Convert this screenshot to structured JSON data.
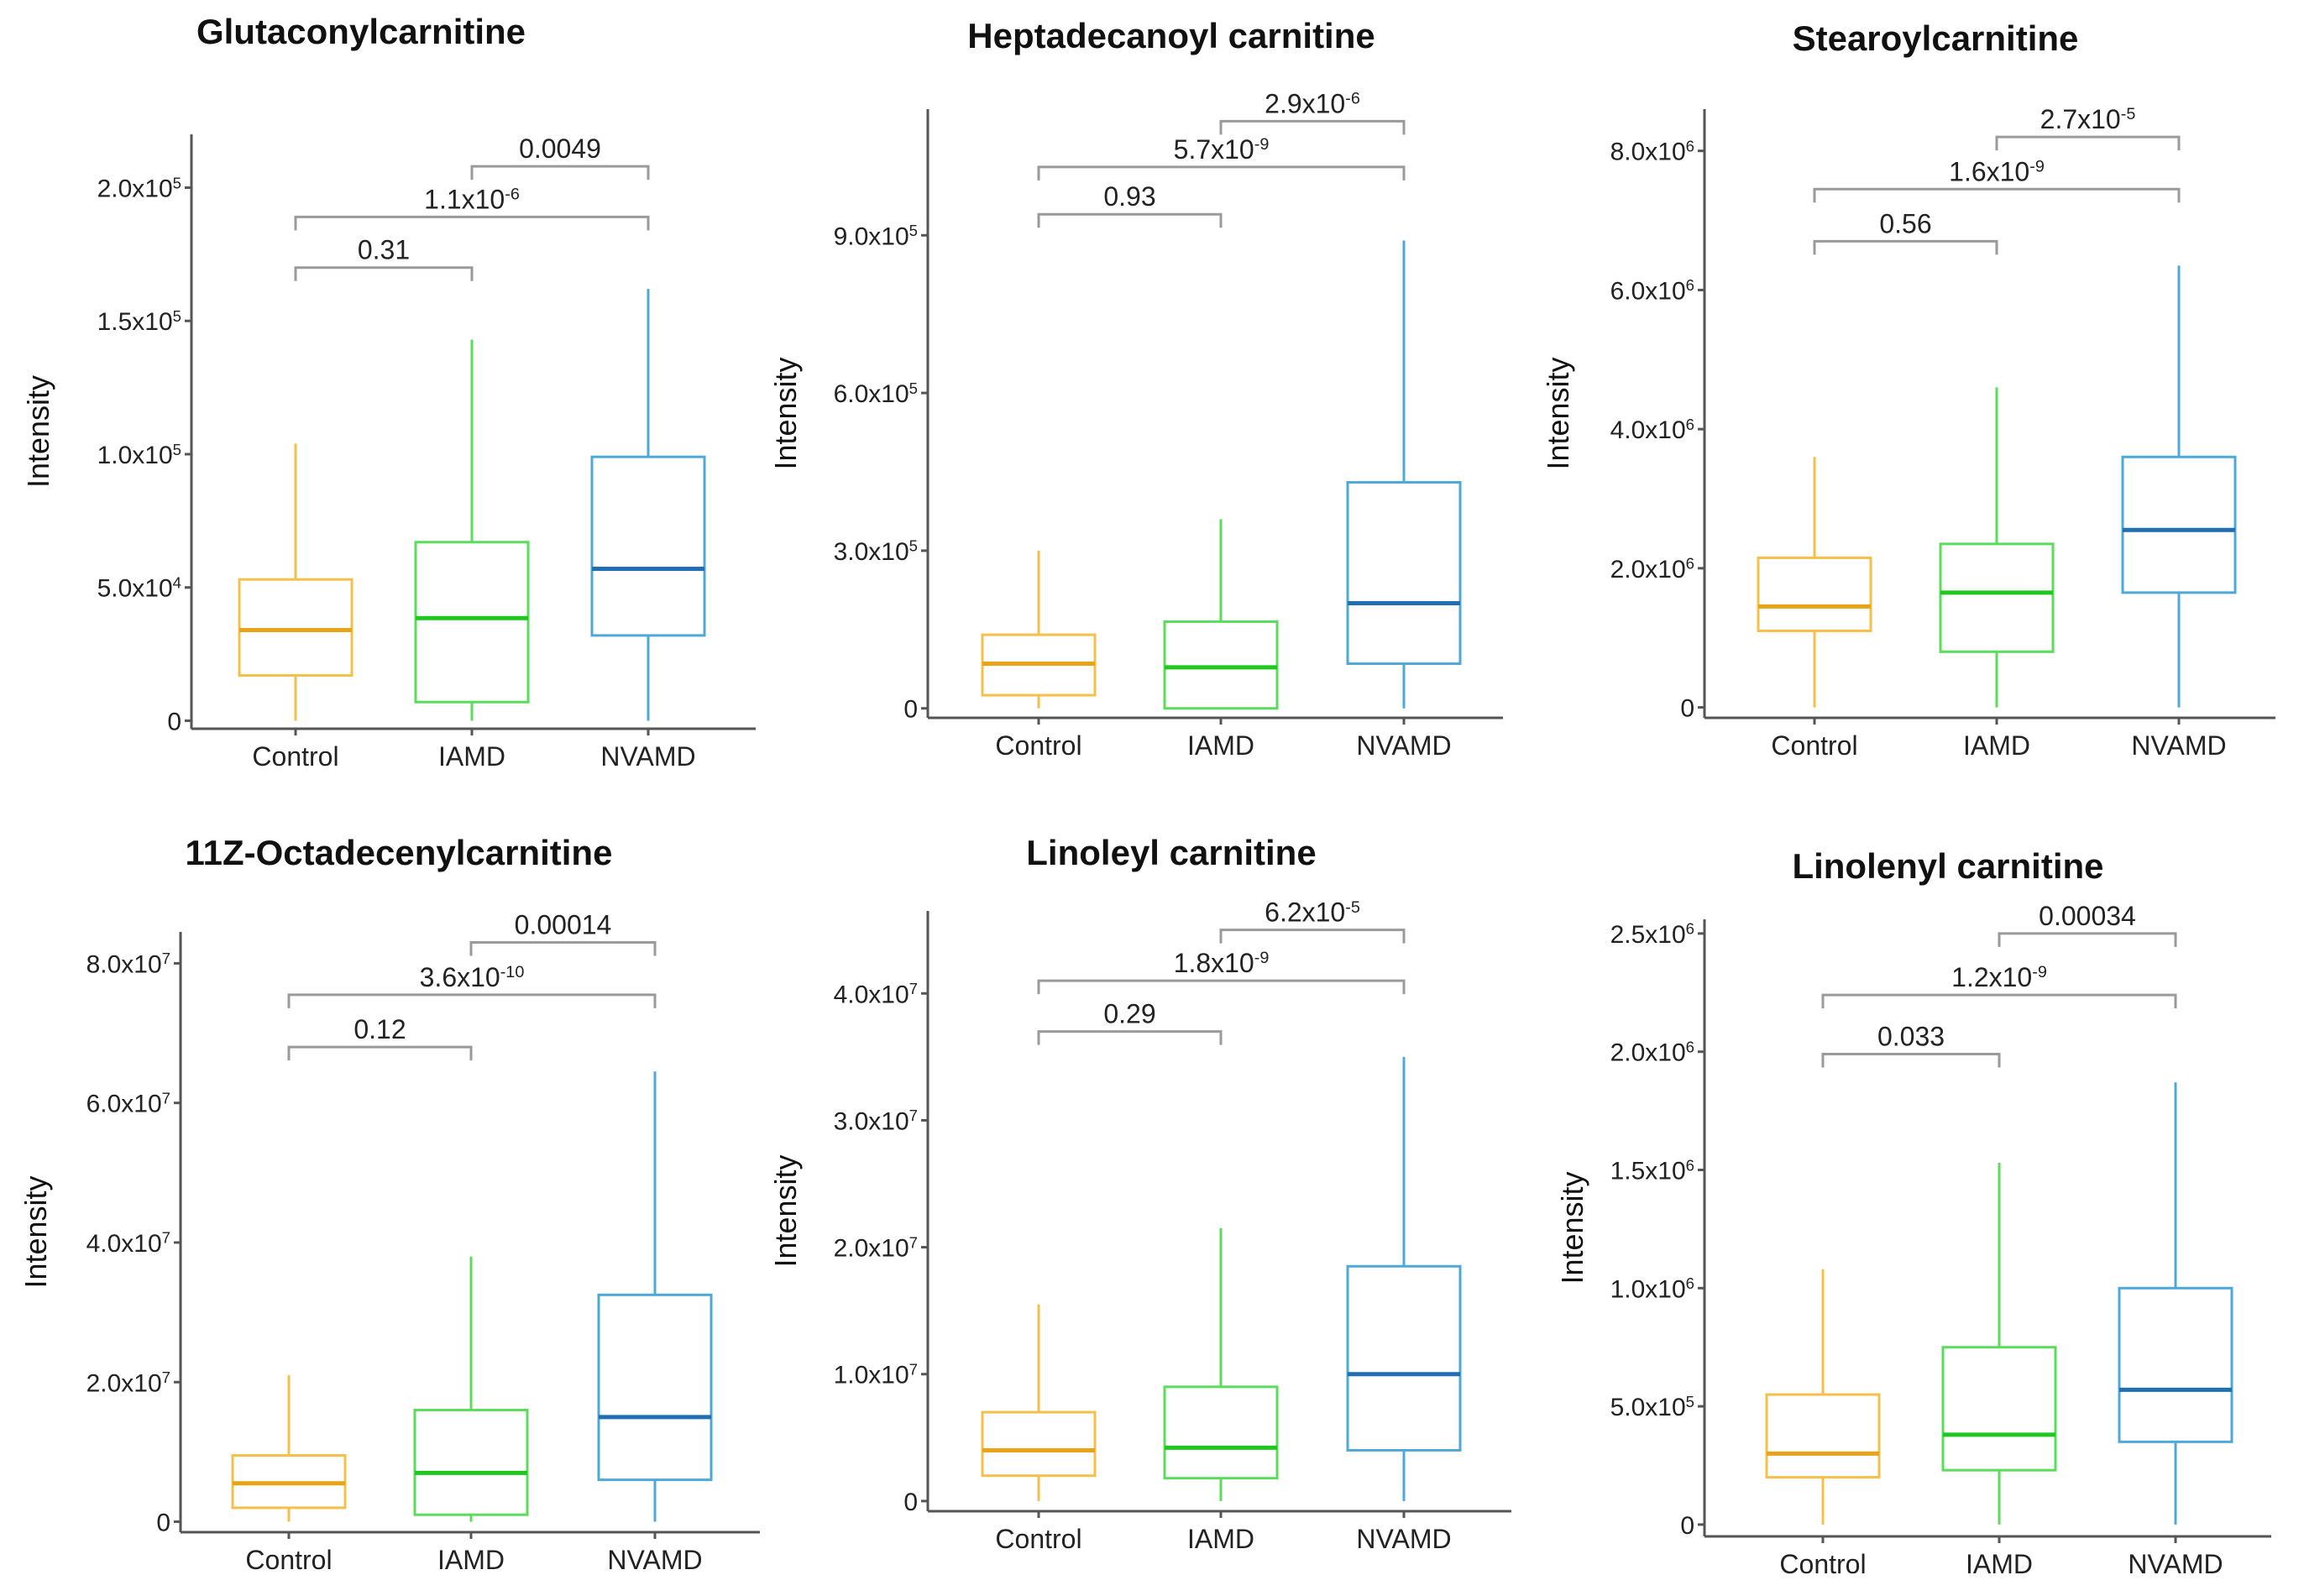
{
  "figure": {
    "ylabel": "Intensity",
    "categories": [
      "Control",
      "IAMD",
      "NVAMD"
    ]
  },
  "chart_data": [
    {
      "type": "boxplot",
      "title": "Glutaconylcarnitine",
      "ylabel": "Intensity",
      "categories": [
        "Control",
        "IAMD",
        "NVAMD"
      ],
      "colors": {
        "Control": {
          "box": "#f5c04a",
          "median": "#e8a317"
        },
        "IAMD": {
          "box": "#5bdc5b",
          "median": "#1ec81e"
        },
        "NVAMD": {
          "box": "#4ea9d9",
          "median": "#1f6fb2"
        }
      },
      "ylim": [
        -3000,
        220000
      ],
      "yticks": [
        {
          "value": 0,
          "label": "0",
          "base": "",
          "exp": ""
        },
        {
          "value": 50000,
          "label": "5.0x10^4",
          "base": "5.0x10",
          "exp": "4"
        },
        {
          "value": 100000,
          "label": "1.0x10^5",
          "base": "1.0x10",
          "exp": "5"
        },
        {
          "value": 150000,
          "label": "1.5x10^5",
          "base": "1.5x10",
          "exp": "5"
        },
        {
          "value": 200000,
          "label": "2.0x10^5",
          "base": "2.0x10",
          "exp": "5"
        }
      ],
      "boxes": [
        {
          "group": "Control",
          "min": 0,
          "q1": 17000,
          "median": 34000,
          "q3": 53000,
          "max": 104000
        },
        {
          "group": "IAMD",
          "min": 0,
          "q1": 7000,
          "median": 38500,
          "q3": 67000,
          "max": 143000
        },
        {
          "group": "NVAMD",
          "min": 0,
          "q1": 32000,
          "median": 57000,
          "q3": 99000,
          "max": 162000
        }
      ],
      "comparisons": [
        {
          "from": "Control",
          "to": "IAMD",
          "label": "0.31",
          "base": "0.31",
          "exp": "",
          "y": 170000
        },
        {
          "from": "Control",
          "to": "NVAMD",
          "label": "1.1x10^-6",
          "base": "1.1x10",
          "exp": "-6",
          "y": 189000
        },
        {
          "from": "IAMD",
          "to": "NVAMD",
          "label": "0.0049",
          "base": "0.0049",
          "exp": "",
          "y": 208000
        }
      ]
    },
    {
      "type": "boxplot",
      "title": "Heptadecanoyl carnitine",
      "ylabel": "Intensity",
      "categories": [
        "Control",
        "IAMD",
        "NVAMD"
      ],
      "colors": {
        "Control": {
          "box": "#f5c04a",
          "median": "#e8a317"
        },
        "IAMD": {
          "box": "#5bdc5b",
          "median": "#1ec81e"
        },
        "NVAMD": {
          "box": "#4ea9d9",
          "median": "#1f6fb2"
        }
      },
      "ylim": [
        -18000,
        1140000
      ],
      "yticks": [
        {
          "value": 0,
          "label": "0",
          "base": "",
          "exp": ""
        },
        {
          "value": 300000,
          "label": "3.0x10^5",
          "base": "3.0x10",
          "exp": "5"
        },
        {
          "value": 600000,
          "label": "6.0x10^5",
          "base": "6.0x10",
          "exp": "5"
        },
        {
          "value": 900000,
          "label": "9.0x10^5",
          "base": "9.0x10",
          "exp": "5"
        }
      ],
      "boxes": [
        {
          "group": "Control",
          "min": 0,
          "q1": 25000,
          "median": 85000,
          "q3": 140000,
          "max": 300000
        },
        {
          "group": "IAMD",
          "min": 0,
          "q1": 0,
          "median": 78000,
          "q3": 165000,
          "max": 360000
        },
        {
          "group": "NVAMD",
          "min": 0,
          "q1": 85000,
          "median": 200000,
          "q3": 430000,
          "max": 890000
        }
      ],
      "comparisons": [
        {
          "from": "Control",
          "to": "IAMD",
          "label": "0.93",
          "base": "0.93",
          "exp": "",
          "y": 940000
        },
        {
          "from": "Control",
          "to": "NVAMD",
          "label": "5.7x10^-9",
          "base": "5.7x10",
          "exp": "-9",
          "y": 1030000
        },
        {
          "from": "IAMD",
          "to": "NVAMD",
          "label": "2.9x10^-6",
          "base": "2.9x10",
          "exp": "-6",
          "y": 1117000
        }
      ]
    },
    {
      "type": "boxplot",
      "title": "Stearoylcarnitine",
      "ylabel": "Intensity",
      "categories": [
        "Control",
        "IAMD",
        "NVAMD"
      ],
      "colors": {
        "Control": {
          "box": "#f5c04a",
          "median": "#e8a317"
        },
        "IAMD": {
          "box": "#5bdc5b",
          "median": "#1ec81e"
        },
        "NVAMD": {
          "box": "#4ea9d9",
          "median": "#1f6fb2"
        }
      },
      "ylim": [
        -150000,
        8600000
      ],
      "yticks": [
        {
          "value": 0,
          "label": "0",
          "base": "",
          "exp": ""
        },
        {
          "value": 2000000,
          "label": "2.0x10^6",
          "base": "2.0x10",
          "exp": "6"
        },
        {
          "value": 4000000,
          "label": "4.0x10^6",
          "base": "4.0x10",
          "exp": "6"
        },
        {
          "value": 6000000,
          "label": "6.0x10^6",
          "base": "6.0x10",
          "exp": "6"
        },
        {
          "value": 8000000,
          "label": "8.0x10^6",
          "base": "8.0x10",
          "exp": "6"
        }
      ],
      "boxes": [
        {
          "group": "Control",
          "min": 0,
          "q1": 1100000,
          "median": 1450000,
          "q3": 2150000,
          "max": 3600000
        },
        {
          "group": "IAMD",
          "min": 0,
          "q1": 800000,
          "median": 1650000,
          "q3": 2350000,
          "max": 4600000
        },
        {
          "group": "NVAMD",
          "min": 0,
          "q1": 1650000,
          "median": 2550000,
          "q3": 3600000,
          "max": 6350000
        }
      ],
      "comparisons": [
        {
          "from": "Control",
          "to": "IAMD",
          "label": "0.56",
          "base": "0.56",
          "exp": "",
          "y": 6700000
        },
        {
          "from": "Control",
          "to": "NVAMD",
          "label": "1.6x10^-9",
          "base": "1.6x10",
          "exp": "-9",
          "y": 7450000
        },
        {
          "from": "IAMD",
          "to": "NVAMD",
          "label": "2.7x10^-5",
          "base": "2.7x10",
          "exp": "-5",
          "y": 8200000
        }
      ]
    },
    {
      "type": "boxplot",
      "title": "11Z-Octadecenylcarnitine",
      "ylabel": "Intensity",
      "categories": [
        "Control",
        "IAMD",
        "NVAMD"
      ],
      "colors": {
        "Control": {
          "box": "#f5c04a",
          "median": "#e8a317"
        },
        "IAMD": {
          "box": "#5bdc5b",
          "median": "#1ec81e"
        },
        "NVAMD": {
          "box": "#4ea9d9",
          "median": "#1f6fb2"
        }
      },
      "ylim": [
        -1500000,
        84500000
      ],
      "yticks": [
        {
          "value": 0,
          "label": "0",
          "base": "",
          "exp": ""
        },
        {
          "value": 20000000,
          "label": "2.0x10^7",
          "base": "2.0x10",
          "exp": "7"
        },
        {
          "value": 40000000,
          "label": "4.0x10^7",
          "base": "4.0x10",
          "exp": "7"
        },
        {
          "value": 60000000,
          "label": "6.0x10^7",
          "base": "6.0x10",
          "exp": "7"
        },
        {
          "value": 80000000,
          "label": "8.0x10^7",
          "base": "8.0x10",
          "exp": "7"
        }
      ],
      "boxes": [
        {
          "group": "Control",
          "min": 0,
          "q1": 2000000,
          "median": 5500000,
          "q3": 9500000,
          "max": 21000000
        },
        {
          "group": "IAMD",
          "min": 0,
          "q1": 1000000,
          "median": 7000000,
          "q3": 16000000,
          "max": 38000000
        },
        {
          "group": "NVAMD",
          "min": 0,
          "q1": 6000000,
          "median": 15000000,
          "q3": 32500000,
          "max": 64500000
        }
      ],
      "comparisons": [
        {
          "from": "Control",
          "to": "IAMD",
          "label": "0.12",
          "base": "0.12",
          "exp": "",
          "y": 68000000
        },
        {
          "from": "Control",
          "to": "NVAMD",
          "label": "3.6x10^-10",
          "base": "3.6x10",
          "exp": "-10",
          "y": 75500000
        },
        {
          "from": "IAMD",
          "to": "NVAMD",
          "label": "0.00014",
          "base": "0.00014",
          "exp": "",
          "y": 83000000
        }
      ]
    },
    {
      "type": "boxplot",
      "title": "Linoleyl carnitine",
      "ylabel": "Intensity",
      "categories": [
        "Control",
        "IAMD",
        "NVAMD"
      ],
      "colors": {
        "Control": {
          "box": "#f5c04a",
          "median": "#e8a317"
        },
        "IAMD": {
          "box": "#5bdc5b",
          "median": "#1ec81e"
        },
        "NVAMD": {
          "box": "#4ea9d9",
          "median": "#1f6fb2"
        }
      },
      "ylim": [
        -800000,
        46500000
      ],
      "yticks": [
        {
          "value": 0,
          "label": "0",
          "base": "",
          "exp": ""
        },
        {
          "value": 10000000,
          "label": "1.0x10^7",
          "base": "1.0x10",
          "exp": "7"
        },
        {
          "value": 20000000,
          "label": "2.0x10^7",
          "base": "2.0x10",
          "exp": "7"
        },
        {
          "value": 30000000,
          "label": "3.0x10^7",
          "base": "3.0x10",
          "exp": "7"
        },
        {
          "value": 40000000,
          "label": "4.0x10^7",
          "base": "4.0x10",
          "exp": "7"
        }
      ],
      "boxes": [
        {
          "group": "Control",
          "min": 0,
          "q1": 2000000,
          "median": 4000000,
          "q3": 7000000,
          "max": 15500000
        },
        {
          "group": "IAMD",
          "min": 0,
          "q1": 1800000,
          "median": 4200000,
          "q3": 9000000,
          "max": 21500000
        },
        {
          "group": "NVAMD",
          "min": 0,
          "q1": 4000000,
          "median": 10000000,
          "q3": 18500000,
          "max": 35000000
        }
      ],
      "comparisons": [
        {
          "from": "Control",
          "to": "IAMD",
          "label": "0.29",
          "base": "0.29",
          "exp": "",
          "y": 37000000
        },
        {
          "from": "Control",
          "to": "NVAMD",
          "label": "1.8x10^-9",
          "base": "1.8x10",
          "exp": "-9",
          "y": 41000000
        },
        {
          "from": "IAMD",
          "to": "NVAMD",
          "label": "6.2x10^-5",
          "base": "6.2x10",
          "exp": "-5",
          "y": 45000000
        }
      ]
    },
    {
      "type": "boxplot",
      "title": "Linolenyl carnitine",
      "ylabel": "Intensity",
      "categories": [
        "Control",
        "IAMD",
        "NVAMD"
      ],
      "colors": {
        "Control": {
          "box": "#f5c04a",
          "median": "#e8a317"
        },
        "IAMD": {
          "box": "#5bdc5b",
          "median": "#1ec81e"
        },
        "NVAMD": {
          "box": "#4ea9d9",
          "median": "#1f6fb2"
        }
      },
      "ylim": [
        -50000,
        2560000
      ],
      "yticks": [
        {
          "value": 0,
          "label": "0",
          "base": "",
          "exp": ""
        },
        {
          "value": 500000,
          "label": "5.0x10^5",
          "base": "5.0x10",
          "exp": "5"
        },
        {
          "value": 1000000,
          "label": "1.0x10^6",
          "base": "1.0x10",
          "exp": "6"
        },
        {
          "value": 1500000,
          "label": "1.5x10^6",
          "base": "1.5x10",
          "exp": "6"
        },
        {
          "value": 2000000,
          "label": "2.0x10^6",
          "base": "2.0x10",
          "exp": "6"
        },
        {
          "value": 2500000,
          "label": "2.5x10^6",
          "base": "2.5x10",
          "exp": "6"
        }
      ],
      "boxes": [
        {
          "group": "Control",
          "min": 0,
          "q1": 200000,
          "median": 300000,
          "q3": 550000,
          "max": 1080000
        },
        {
          "group": "IAMD",
          "min": 0,
          "q1": 230000,
          "median": 380000,
          "q3": 750000,
          "max": 1530000
        },
        {
          "group": "NVAMD",
          "min": 0,
          "q1": 350000,
          "median": 570000,
          "q3": 1000000,
          "max": 1870000
        }
      ],
      "comparisons": [
        {
          "from": "Control",
          "to": "IAMD",
          "label": "0.033",
          "base": "0.033",
          "exp": "",
          "y": 1990000
        },
        {
          "from": "Control",
          "to": "NVAMD",
          "label": "1.2x10^-9",
          "base": "1.2x10",
          "exp": "-9",
          "y": 2240000
        },
        {
          "from": "IAMD",
          "to": "NVAMD",
          "label": "0.00034",
          "base": "0.00034",
          "exp": "",
          "y": 2500000
        }
      ]
    }
  ]
}
